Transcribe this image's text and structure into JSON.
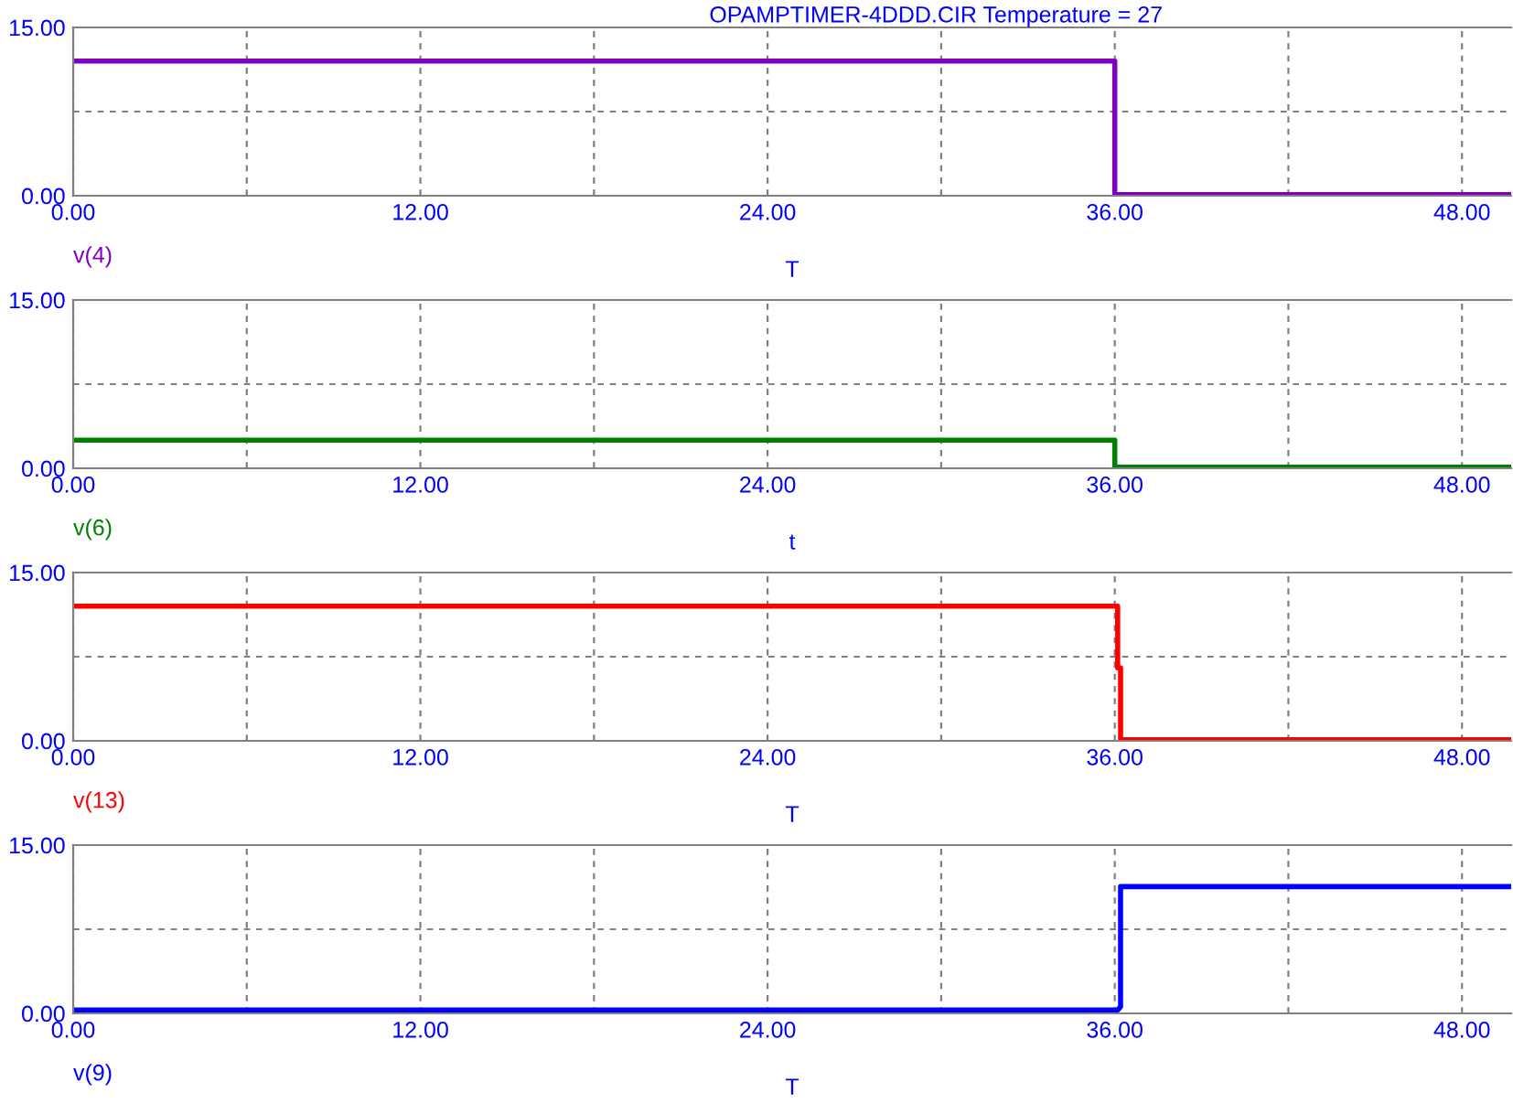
{
  "chart_data": [
    {
      "type": "line",
      "title": "OPAMPTIMER-4DDD.CIR Temperature = 27",
      "xlabel": "T",
      "series": [
        {
          "name": "v(4)",
          "color": "#8000c0",
          "x": [
            0,
            36,
            36,
            49.7
          ],
          "values": [
            12,
            12,
            0.1,
            0.1
          ]
        }
      ],
      "xlim": [
        0,
        49.7
      ],
      "xticks": [
        {
          "value": 0,
          "label": "0.00"
        },
        {
          "value": 6,
          "label": null
        },
        {
          "value": 12,
          "label": "12.00"
        },
        {
          "value": 18,
          "label": null
        },
        {
          "value": 24,
          "label": "24.00"
        },
        {
          "value": 30,
          "label": null
        },
        {
          "value": 36,
          "label": "36.00"
        },
        {
          "value": 42,
          "label": null
        },
        {
          "value": 48,
          "label": "48.00"
        }
      ],
      "ylim": [
        0,
        15
      ],
      "yticks": [
        {
          "value": 0,
          "label": "0.00"
        },
        {
          "value": 7.5,
          "label": null
        },
        {
          "value": 15,
          "label": "15.00"
        }
      ],
      "grid": true,
      "legend": false
    },
    {
      "type": "line",
      "xlabel": "t",
      "series": [
        {
          "name": "v(6)",
          "color": "#008000",
          "x": [
            0,
            36,
            36,
            49.7
          ],
          "values": [
            2.5,
            2.5,
            0.1,
            0.1
          ]
        }
      ],
      "xlim": [
        0,
        49.7
      ],
      "xticks": [
        {
          "value": 0,
          "label": "0.00"
        },
        {
          "value": 6,
          "label": null
        },
        {
          "value": 12,
          "label": "12.00"
        },
        {
          "value": 18,
          "label": null
        },
        {
          "value": 24,
          "label": "24.00"
        },
        {
          "value": 30,
          "label": null
        },
        {
          "value": 36,
          "label": "36.00"
        },
        {
          "value": 42,
          "label": null
        },
        {
          "value": 48,
          "label": "48.00"
        }
      ],
      "ylim": [
        0,
        15
      ],
      "yticks": [
        {
          "value": 0,
          "label": "0.00"
        },
        {
          "value": 7.5,
          "label": null
        },
        {
          "value": 15,
          "label": "15.00"
        }
      ],
      "grid": true,
      "legend": false
    },
    {
      "type": "line",
      "xlabel": "T",
      "series": [
        {
          "name": "v(13)",
          "color": "#ff0000",
          "x": [
            0,
            36.1,
            36.1,
            36.2,
            36.2,
            49.7
          ],
          "values": [
            12,
            12,
            6.5,
            6.5,
            0.1,
            0.1
          ]
        }
      ],
      "xlim": [
        0,
        49.7
      ],
      "xticks": [
        {
          "value": 0,
          "label": "0.00"
        },
        {
          "value": 6,
          "label": null
        },
        {
          "value": 12,
          "label": "12.00"
        },
        {
          "value": 18,
          "label": null
        },
        {
          "value": 24,
          "label": "24.00"
        },
        {
          "value": 30,
          "label": null
        },
        {
          "value": 36,
          "label": "36.00"
        },
        {
          "value": 42,
          "label": null
        },
        {
          "value": 48,
          "label": "48.00"
        }
      ],
      "ylim": [
        0,
        15
      ],
      "yticks": [
        {
          "value": 0,
          "label": "0.00"
        },
        {
          "value": 7.5,
          "label": null
        },
        {
          "value": 15,
          "label": "15.00"
        }
      ],
      "grid": true,
      "legend": false
    },
    {
      "type": "line",
      "xlabel": "T",
      "series": [
        {
          "name": "v(9)",
          "color": "#0000ff",
          "x": [
            0,
            36.1,
            36.2,
            36.2,
            49.7
          ],
          "values": [
            0.3,
            0.3,
            0.6,
            11.3,
            11.3
          ]
        }
      ],
      "xlim": [
        0,
        49.7
      ],
      "xticks": [
        {
          "value": 0,
          "label": "0.00"
        },
        {
          "value": 6,
          "label": null
        },
        {
          "value": 12,
          "label": "12.00"
        },
        {
          "value": 18,
          "label": null
        },
        {
          "value": 24,
          "label": "24.00"
        },
        {
          "value": 30,
          "label": null
        },
        {
          "value": 36,
          "label": "36.00"
        },
        {
          "value": 42,
          "label": null
        },
        {
          "value": 48,
          "label": "48.00"
        }
      ],
      "ylim": [
        0,
        15
      ],
      "yticks": [
        {
          "value": 0,
          "label": "0.00"
        },
        {
          "value": 7.5,
          "label": null
        },
        {
          "value": 15,
          "label": "15.00"
        }
      ],
      "grid": true,
      "legend": false
    }
  ]
}
